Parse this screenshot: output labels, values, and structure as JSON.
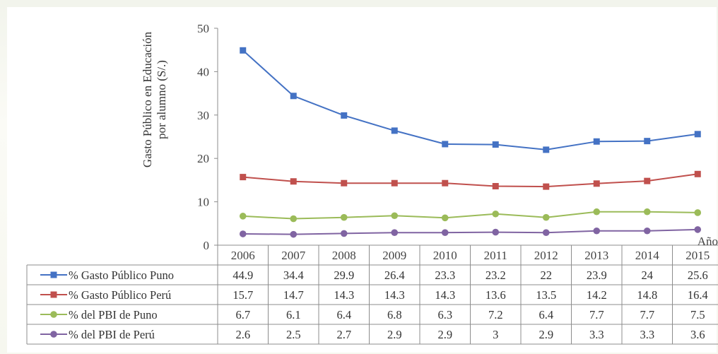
{
  "chart_data": {
    "type": "line",
    "ylabel_line1": "Gasto Público en Educación",
    "ylabel_line2": "por alumno (S/.)",
    "xlabel": "Año",
    "ylim": [
      0,
      50
    ],
    "yticks": [
      0,
      10,
      20,
      30,
      40,
      50
    ],
    "categories": [
      "2006",
      "2007",
      "2008",
      "2009",
      "2010",
      "2011",
      "2012",
      "2013",
      "2014",
      "2015"
    ],
    "series": [
      {
        "name": "% Gasto Público Puno",
        "color": "#4472c4",
        "marker": "square",
        "values": [
          44.9,
          34.4,
          29.9,
          26.4,
          23.3,
          23.2,
          22,
          23.9,
          24,
          25.6
        ]
      },
      {
        "name": "% Gasto Público Perú",
        "color": "#c0504d",
        "marker": "square",
        "values": [
          15.7,
          14.7,
          14.3,
          14.3,
          14.3,
          13.6,
          13.5,
          14.2,
          14.8,
          16.4
        ]
      },
      {
        "name": "% del PBI de Puno",
        "color": "#9bbb59",
        "marker": "circle",
        "values": [
          6.7,
          6.1,
          6.4,
          6.8,
          6.3,
          7.2,
          6.4,
          7.7,
          7.7,
          7.5
        ]
      },
      {
        "name": "% del PBI de Perú",
        "color": "#8064a2",
        "marker": "circle",
        "values": [
          2.6,
          2.5,
          2.7,
          2.9,
          2.9,
          3,
          2.9,
          3.3,
          3.3,
          3.6
        ]
      }
    ],
    "grid": false,
    "legend": "data-table"
  }
}
